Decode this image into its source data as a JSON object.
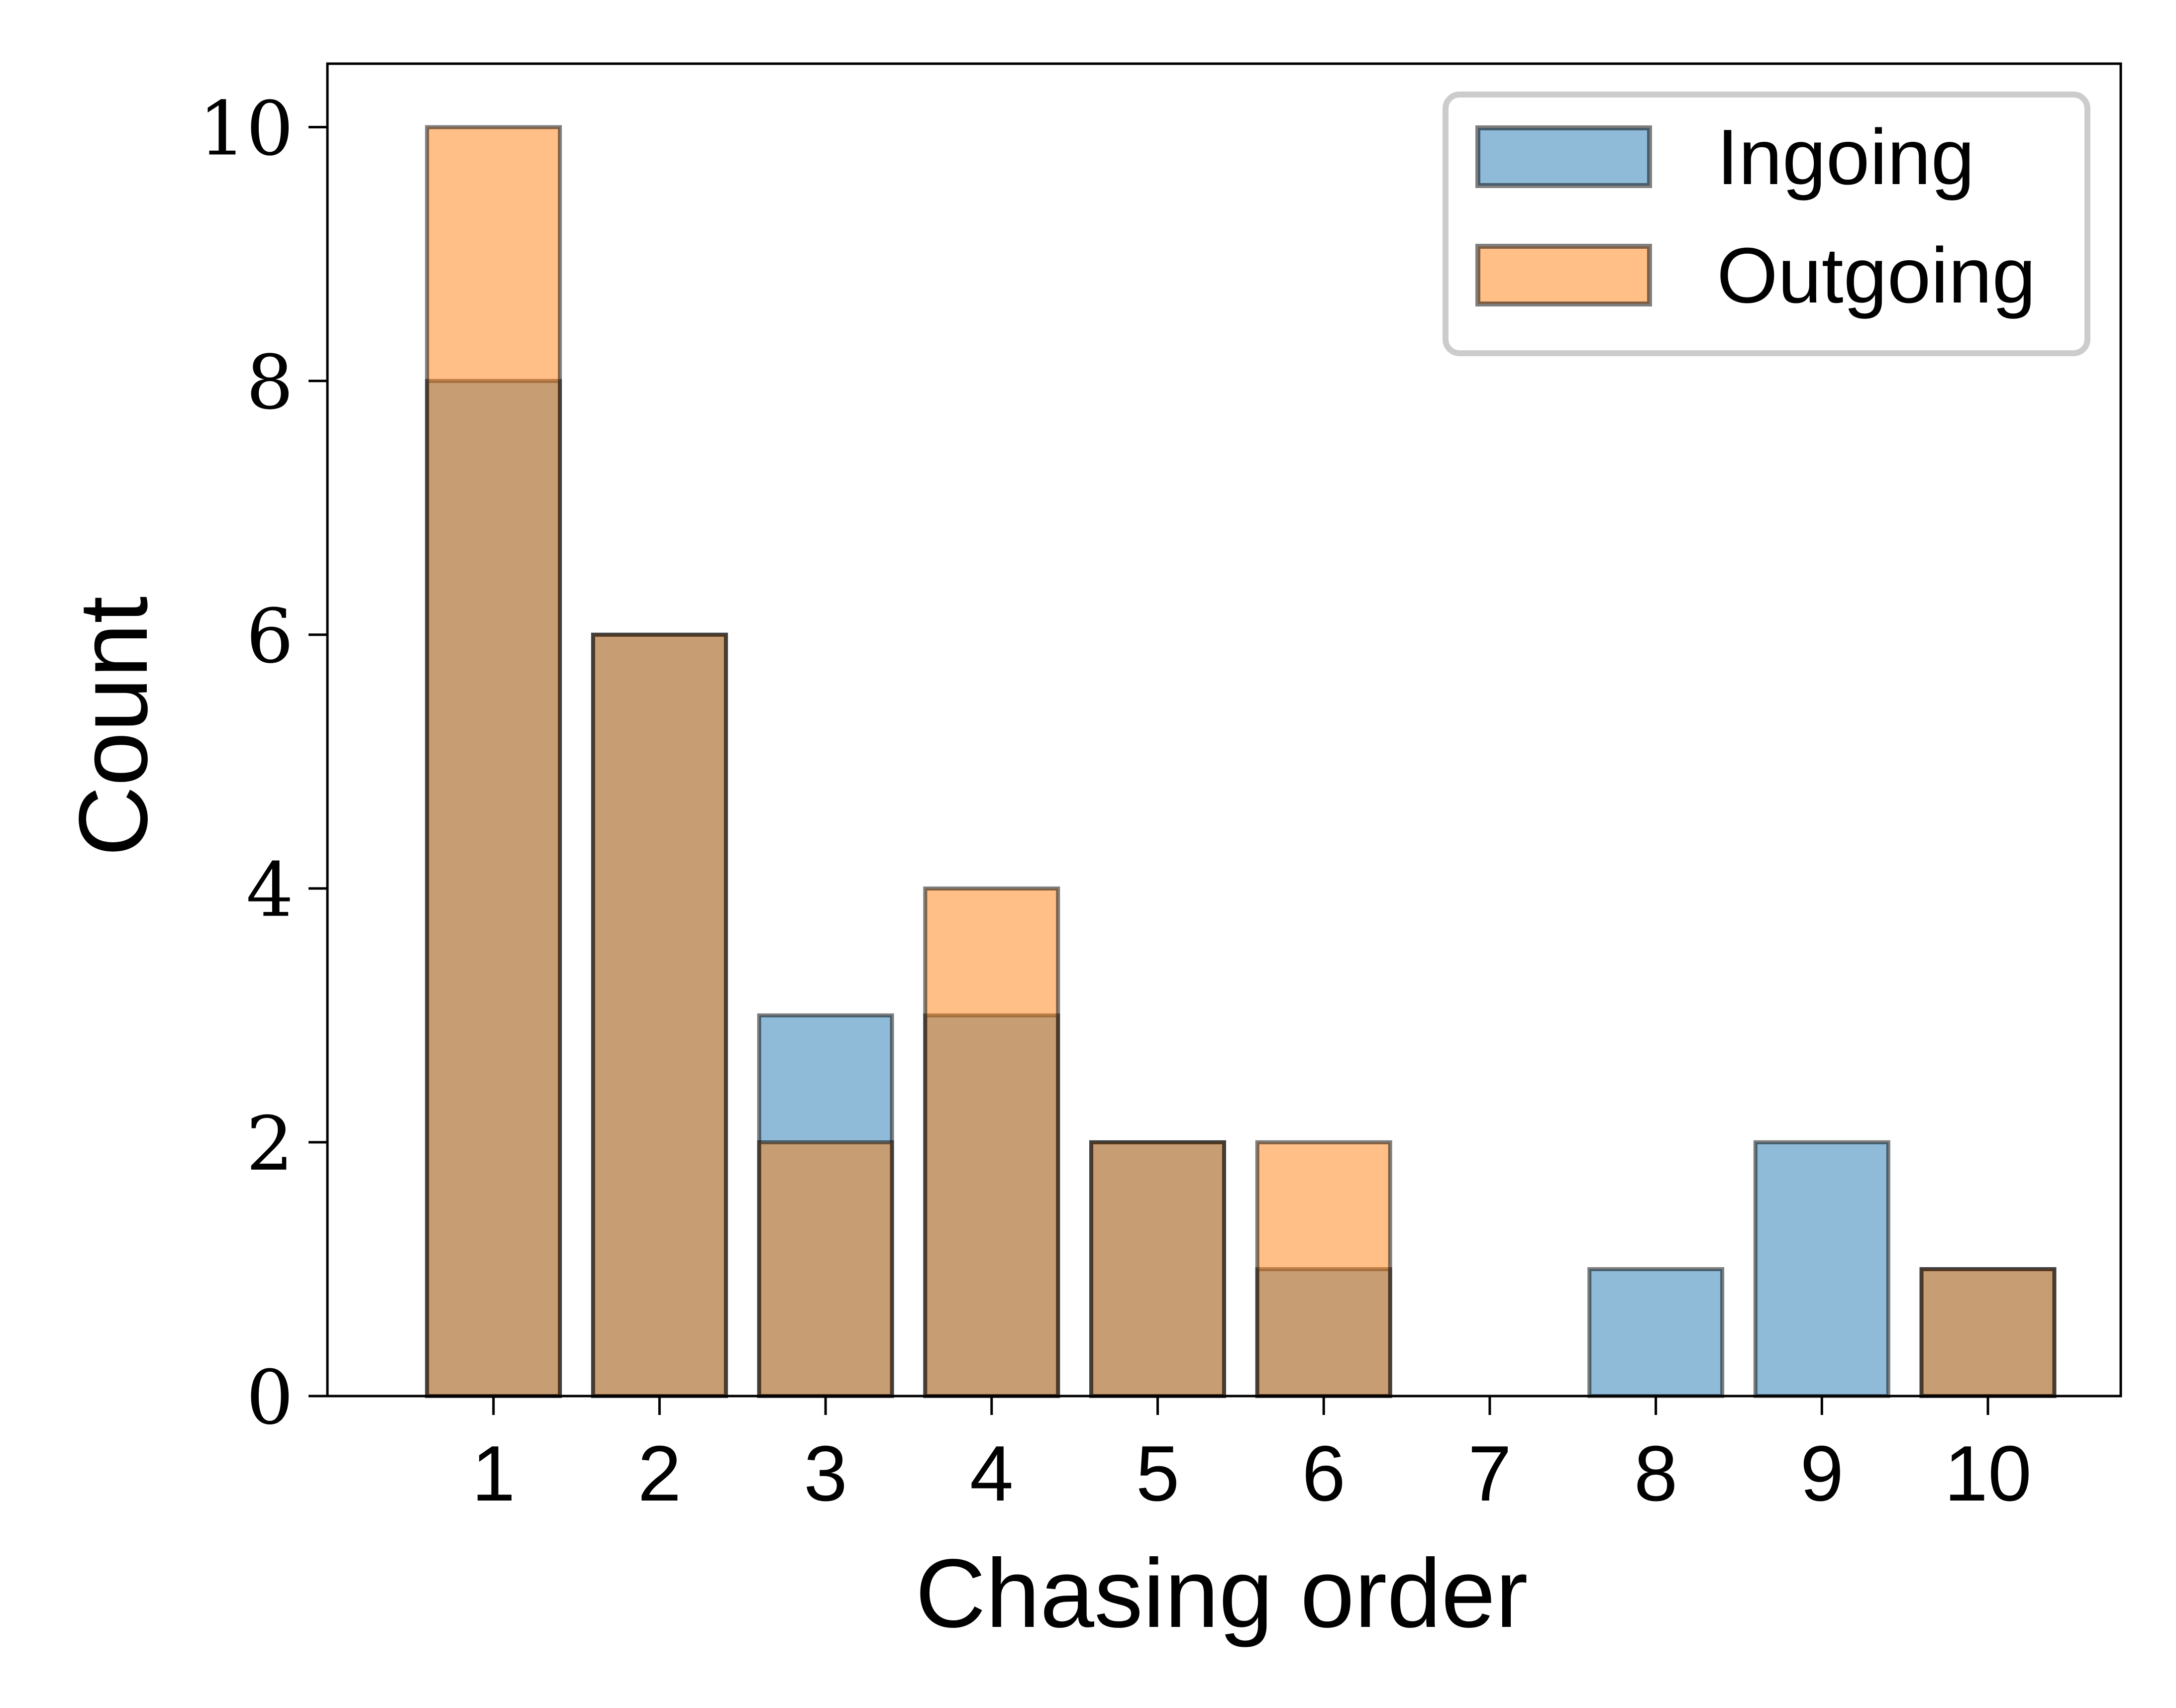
{
  "chart_data": {
    "type": "bar",
    "title": "",
    "xlabel": "Chasing order",
    "ylabel": "Count",
    "categories": [
      "1",
      "2",
      "3",
      "4",
      "5",
      "6",
      "7",
      "8",
      "9",
      "10"
    ],
    "x": [
      1,
      2,
      3,
      4,
      5,
      6,
      7,
      8,
      9,
      10
    ],
    "yticks": [
      0,
      2,
      4,
      6,
      8,
      10
    ],
    "ytick_labels": [
      "0",
      "2",
      "4",
      "6",
      "8",
      "10"
    ],
    "ylim": [
      0,
      10.5
    ],
    "xlim": [
      0.0,
      10.8
    ],
    "grid": false,
    "legend_position": "top-right",
    "overlay": true,
    "series": [
      {
        "name": "Ingoing",
        "color": "#1f77b4",
        "values": [
          8,
          6,
          3,
          3,
          2,
          1,
          0,
          1,
          2,
          1
        ]
      },
      {
        "name": "Outgoing",
        "color": "#ff7f0e",
        "values": [
          10,
          6,
          2,
          4,
          2,
          2,
          0,
          0,
          0,
          1
        ]
      }
    ]
  }
}
